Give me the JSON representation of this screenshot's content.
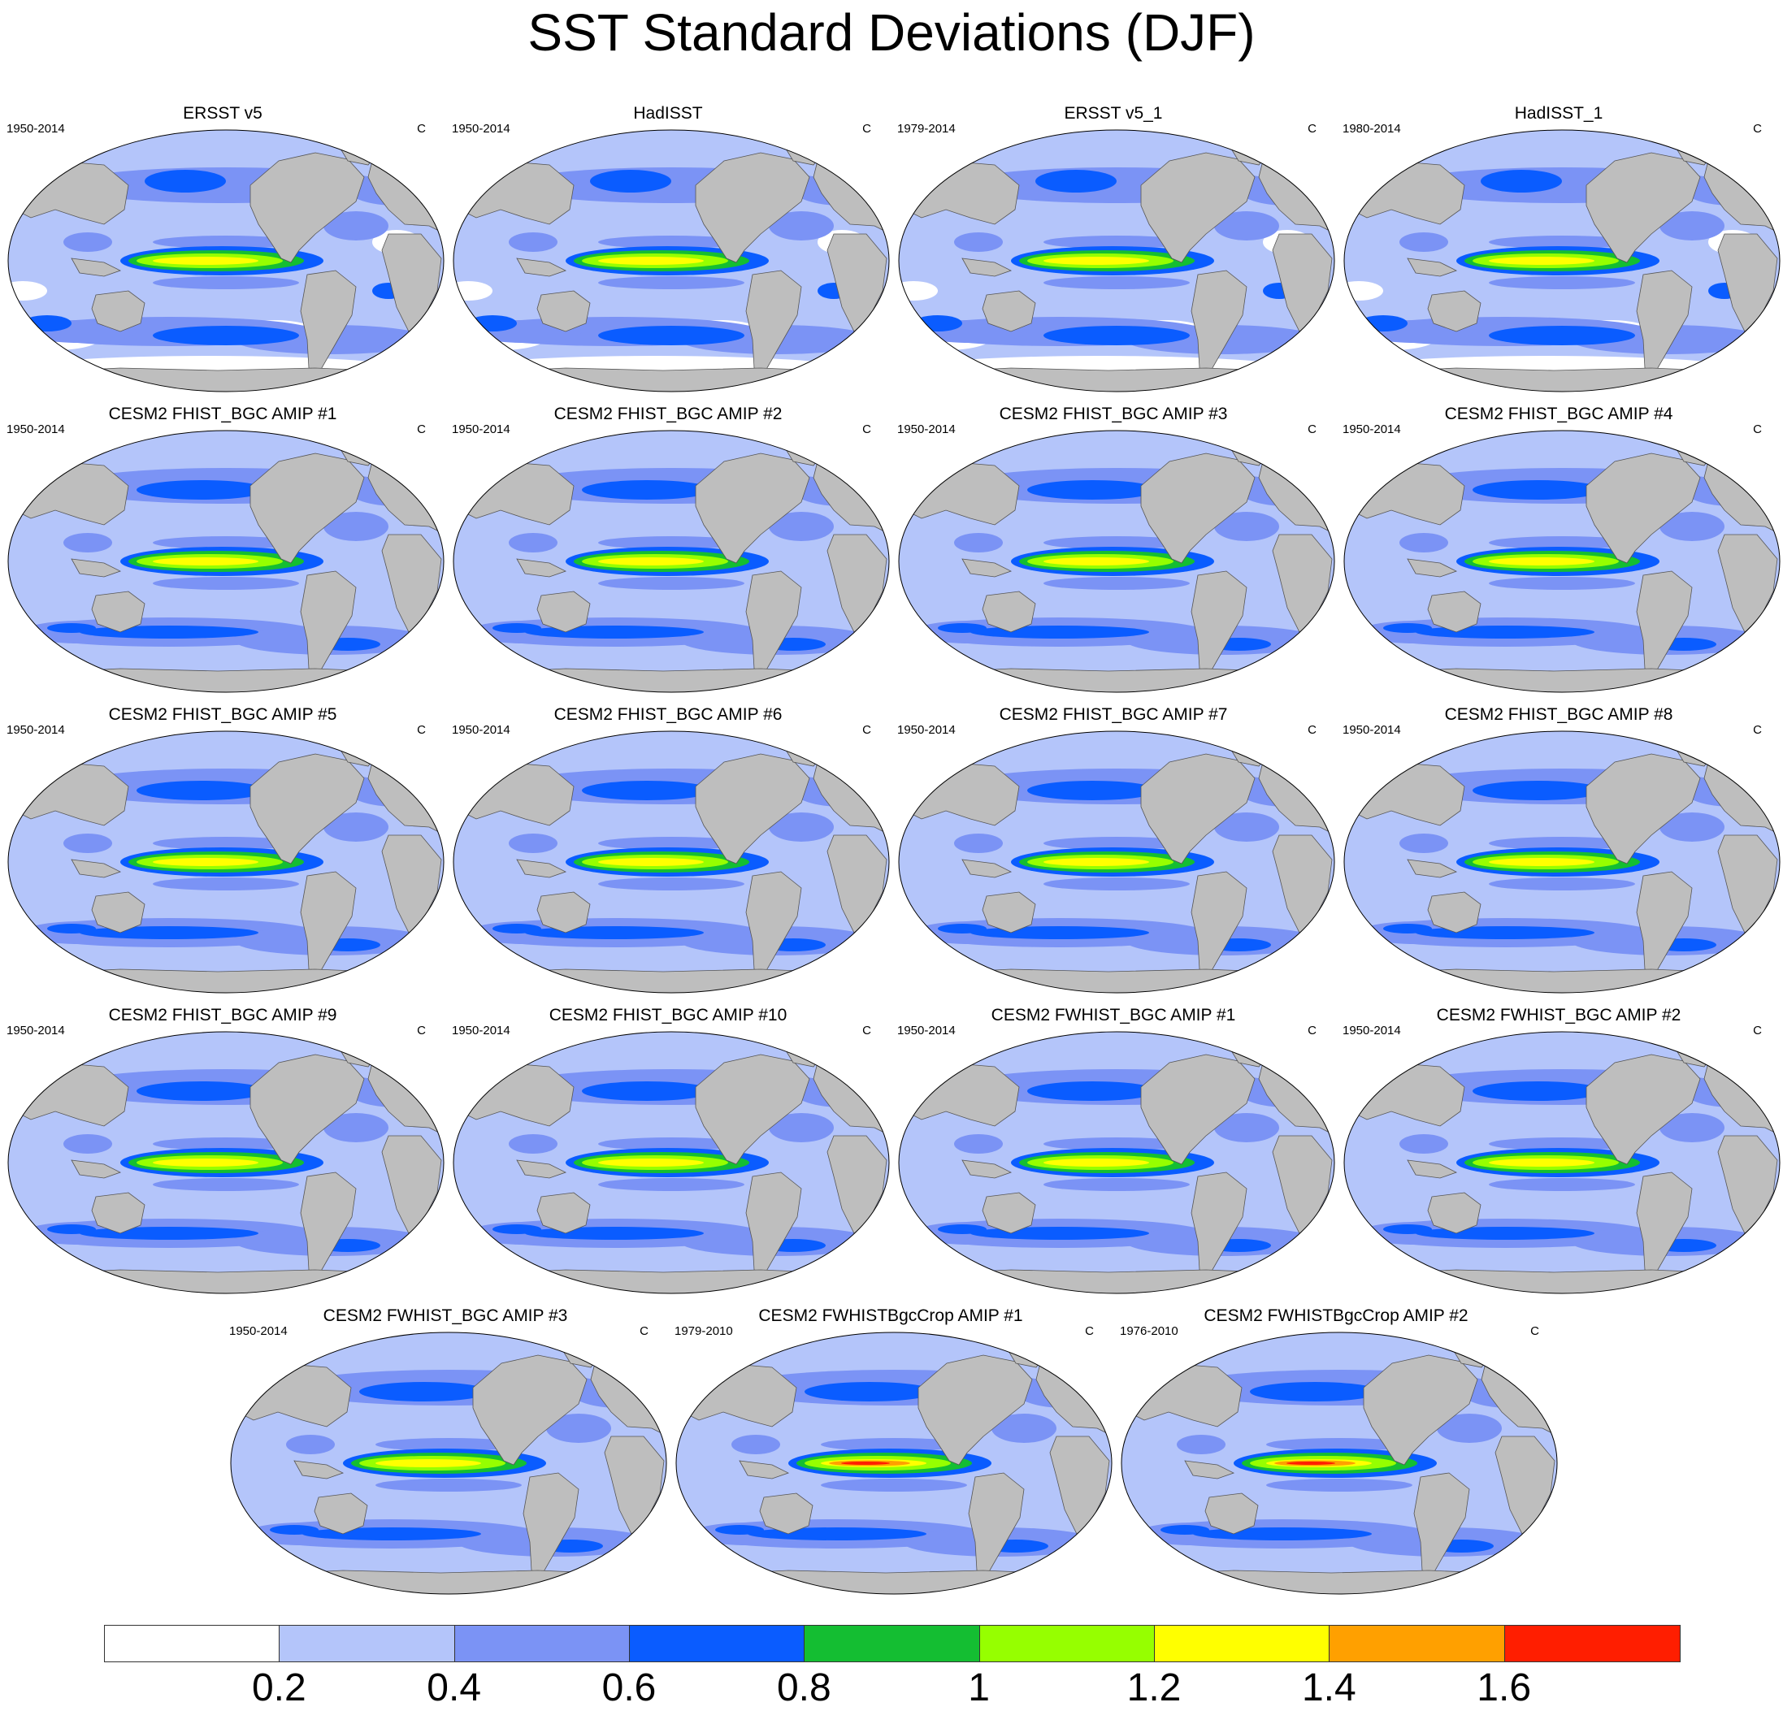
{
  "title": "SST Standard Deviations (DJF)",
  "panels": [
    {
      "title": "ERSST v5",
      "period": "1950-2014",
      "unit": "C",
      "variant": "obs"
    },
    {
      "title": "HadISST",
      "period": "1950-2014",
      "unit": "C",
      "variant": "obs"
    },
    {
      "title": "ERSST v5_1",
      "period": "1979-2014",
      "unit": "C",
      "variant": "obs"
    },
    {
      "title": "HadISST_1",
      "period": "1980-2014",
      "unit": "C",
      "variant": "obs"
    },
    {
      "title": "CESM2 FHIST_BGC AMIP #1",
      "period": "1950-2014",
      "unit": "C",
      "variant": "model"
    },
    {
      "title": "CESM2 FHIST_BGC AMIP #2",
      "period": "1950-2014",
      "unit": "C",
      "variant": "model"
    },
    {
      "title": "CESM2 FHIST_BGC AMIP #3",
      "period": "1950-2014",
      "unit": "C",
      "variant": "model"
    },
    {
      "title": "CESM2 FHIST_BGC AMIP #4",
      "period": "1950-2014",
      "unit": "C",
      "variant": "model"
    },
    {
      "title": "CESM2 FHIST_BGC AMIP #5",
      "period": "1950-2014",
      "unit": "C",
      "variant": "model"
    },
    {
      "title": "CESM2 FHIST_BGC AMIP #6",
      "period": "1950-2014",
      "unit": "C",
      "variant": "model"
    },
    {
      "title": "CESM2 FHIST_BGC AMIP #7",
      "period": "1950-2014",
      "unit": "C",
      "variant": "model"
    },
    {
      "title": "CESM2 FHIST_BGC AMIP #8",
      "period": "1950-2014",
      "unit": "C",
      "variant": "model"
    },
    {
      "title": "CESM2 FHIST_BGC AMIP #9",
      "period": "1950-2014",
      "unit": "C",
      "variant": "model"
    },
    {
      "title": "CESM2 FHIST_BGC AMIP #10",
      "period": "1950-2014",
      "unit": "C",
      "variant": "model"
    },
    {
      "title": "CESM2 FWHIST_BGC AMIP #1",
      "period": "1950-2014",
      "unit": "C",
      "variant": "model"
    },
    {
      "title": "CESM2 FWHIST_BGC AMIP #2",
      "period": "1950-2014",
      "unit": "C",
      "variant": "model"
    },
    {
      "title": "CESM2 FWHIST_BGC AMIP #3",
      "period": "1950-2014",
      "unit": "C",
      "variant": "model"
    },
    {
      "title": "CESM2 FWHISTBgcCrop AMIP #1",
      "period": "1979-2010",
      "unit": "C",
      "variant": "strong"
    },
    {
      "title": "CESM2 FWHISTBgcCrop AMIP #2",
      "period": "1976-2010",
      "unit": "C",
      "variant": "strong"
    }
  ],
  "colorbar": {
    "labels": [
      "0.2",
      "0.4",
      "0.6",
      "0.8",
      "1",
      "1.2",
      "1.4",
      "1.6"
    ],
    "colors": [
      "#ffffff",
      "#b4c5fa",
      "#7b93f5",
      "#0a5cff",
      "#14be32",
      "#96ff00",
      "#ffff00",
      "#ffa000",
      "#ff1e00"
    ]
  },
  "land_color": "#bebebe"
}
